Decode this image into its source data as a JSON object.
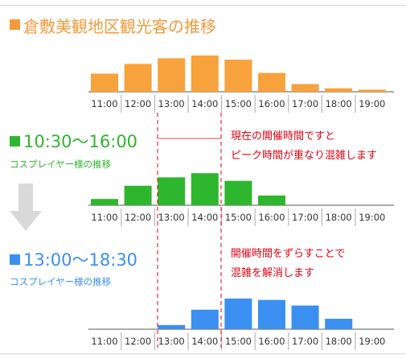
{
  "page": {
    "title": "倉敷美観地区観光客の推移",
    "title_color": "#f39a3c"
  },
  "sections": [
    {
      "label": "10:30〜16:00",
      "sublabel": "コスプレイヤー様の推移",
      "color": "#2fb62f",
      "note": [
        "現在の開催時間ですと",
        "ピーク時間が重なり混雑します"
      ]
    },
    {
      "label": "13:00〜18:30",
      "sublabel": "コスプレイヤー様の推移",
      "color": "#3b8ff0",
      "note": [
        "開催時間をずらすことで",
        "混雑を解消します"
      ]
    }
  ],
  "note_color": "#e60012",
  "arrow_icon": "down-arrow-icon",
  "chart_data": [
    {
      "type": "bar",
      "title": "倉敷美観地区観光客の推移",
      "color": "#f7a23c",
      "categories": [
        "11:00",
        "12:00",
        "13:00",
        "14:00",
        "15:00",
        "16:00",
        "17:00",
        "18:00",
        "19:00"
      ],
      "values": [
        26,
        40,
        48,
        52,
        46,
        27,
        11,
        5,
        3
      ],
      "ylim": [
        0,
        60
      ],
      "grid": false
    },
    {
      "type": "bar",
      "title": "10:30〜16:00",
      "color": "#2fb62f",
      "categories": [
        "11:00",
        "12:00",
        "13:00",
        "14:00",
        "15:00",
        "16:00",
        "17:00",
        "18:00",
        "19:00"
      ],
      "values": [
        9,
        28,
        40,
        46,
        35,
        14,
        0,
        0,
        0
      ],
      "ylim": [
        0,
        60
      ],
      "grid": false
    },
    {
      "type": "bar",
      "title": "13:00〜18:30",
      "color": "#3b8ff0",
      "categories": [
        "11:00",
        "12:00",
        "13:00",
        "14:00",
        "15:00",
        "16:00",
        "17:00",
        "18:00",
        "19:00"
      ],
      "values": [
        0,
        0,
        6,
        28,
        44,
        42,
        34,
        15,
        0
      ],
      "ylim": [
        0,
        60
      ],
      "grid": false
    }
  ]
}
